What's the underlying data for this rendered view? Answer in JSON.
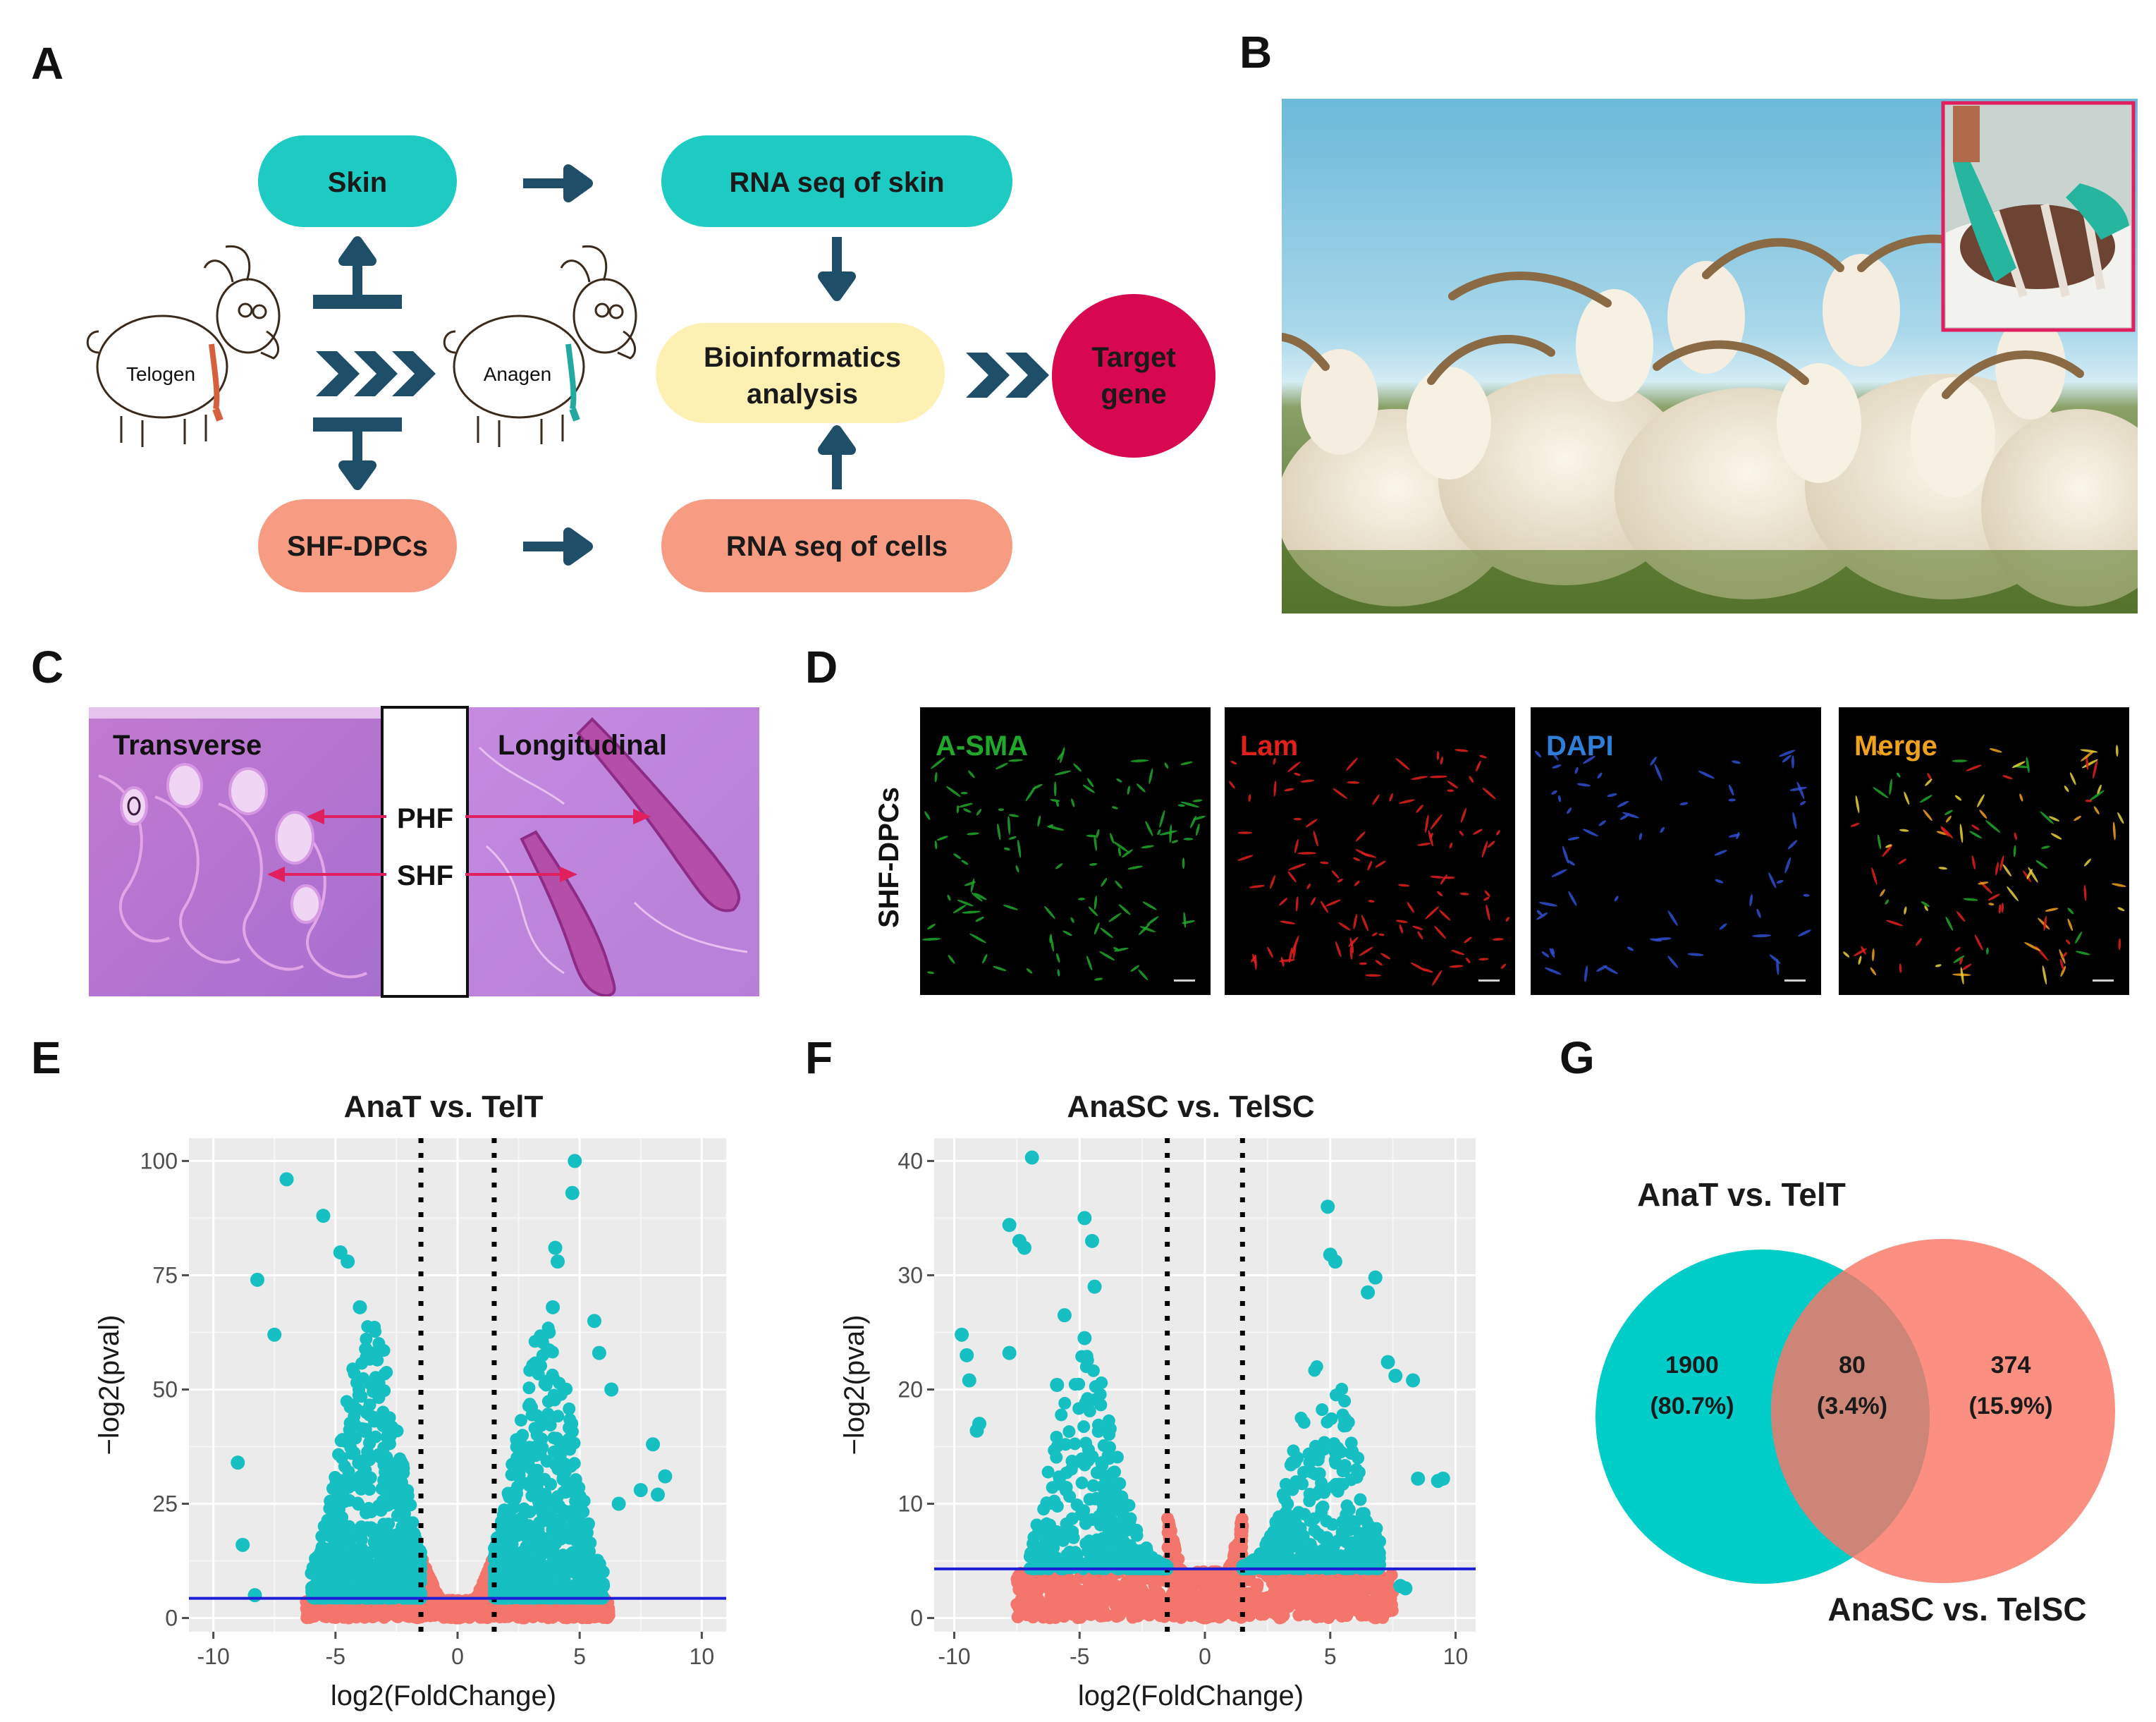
{
  "panel_labels": [
    "A",
    "B",
    "C",
    "D",
    "E",
    "F",
    "G"
  ],
  "panel_a": {
    "skin": "Skin",
    "rna_skin": "RNA seq of skin",
    "shf_dpcs": "SHF-DPCs",
    "rna_cells": "RNA seq of cells",
    "bioinfo_line1": "Bioinformatics",
    "bioinfo_line2": "analysis",
    "target_line1": "Target",
    "target_line2": "gene",
    "telogen": "Telogen",
    "anagen": "Anagen",
    "colors": {
      "teal": "#1ecbc3",
      "salmon": "#f79b83",
      "yellow": "#fdf0b3",
      "crimson": "#d7084f",
      "arrow": "#1f4e68"
    }
  },
  "panel_c": {
    "transverse": "Transverse",
    "longitudinal": "Longitudinal",
    "phf": "PHF",
    "shf": "SHF"
  },
  "panel_d": {
    "row_label": "SHF-DPCs",
    "channels": [
      {
        "name": "A-SMA",
        "color": "#1fa82a"
      },
      {
        "name": "Lam",
        "color": "#e0201b"
      },
      {
        "name": "DAPI",
        "color": "#2f7fd8"
      },
      {
        "name": "Merge",
        "color": "#f1a21c"
      }
    ]
  },
  "chart_data": [
    {
      "type": "scatter",
      "panel": "E",
      "title": "AnaT vs. TelT",
      "xlabel": "log2(FoldChange)",
      "ylabel": "−log2(pval)",
      "xlim": [
        -11,
        11
      ],
      "ylim": [
        -3,
        105
      ],
      "xticks": [
        -10,
        -5,
        0,
        5,
        10
      ],
      "yticks": [
        0,
        25,
        50,
        75,
        100
      ],
      "fc_threshold": [
        -1.5,
        1.5
      ],
      "pval_threshold": 4.3,
      "colors": {
        "significant": "#16bfc2",
        "nonsignificant": "#f4756c",
        "hline": "#1d1dd8"
      },
      "highlight_points": [
        [
          -7,
          96
        ],
        [
          -5.5,
          88
        ],
        [
          -4.8,
          80
        ],
        [
          -8.2,
          74
        ],
        [
          -4.5,
          78
        ],
        [
          -7.5,
          62
        ],
        [
          -9,
          34
        ],
        [
          -8.8,
          16
        ],
        [
          -8.3,
          5
        ],
        [
          -4,
          68
        ],
        [
          4.8,
          100
        ],
        [
          4.7,
          93
        ],
        [
          4,
          81
        ],
        [
          4.1,
          78
        ],
        [
          3.9,
          68
        ],
        [
          5.6,
          65
        ],
        [
          5.8,
          58
        ],
        [
          6.3,
          50
        ],
        [
          8,
          38
        ],
        [
          8.5,
          31
        ],
        [
          8.2,
          27
        ],
        [
          6.6,
          25
        ],
        [
          7.5,
          28
        ]
      ]
    },
    {
      "type": "scatter",
      "panel": "F",
      "title": "AnaSC vs. TelSC",
      "xlabel": "log2(FoldChange)",
      "ylabel": "−log2(pval)",
      "xlim": [
        -10.8,
        10.8
      ],
      "ylim": [
        -1.2,
        42
      ],
      "xticks": [
        -10,
        -5,
        0,
        5,
        10
      ],
      "yticks": [
        0,
        10,
        20,
        30,
        40
      ],
      "fc_threshold": [
        -1.5,
        1.5
      ],
      "pval_threshold": 4.3,
      "colors": {
        "significant": "#16bfc2",
        "nonsignificant": "#f4756c",
        "hline": "#1d1dd8"
      },
      "highlight_points": [
        [
          -6.9,
          40.3
        ],
        [
          -7.8,
          34.4
        ],
        [
          -7.4,
          33
        ],
        [
          -7.2,
          32.4
        ],
        [
          -4.8,
          35
        ],
        [
          -4.5,
          33
        ],
        [
          -4.4,
          29
        ],
        [
          -5.6,
          26.5
        ],
        [
          -4.8,
          24.5
        ],
        [
          -9.7,
          24.8
        ],
        [
          -9.5,
          23
        ],
        [
          -7.8,
          23.2
        ],
        [
          -9.4,
          20.8
        ],
        [
          -5.9,
          20.4
        ],
        [
          -9,
          17
        ],
        [
          -9.1,
          16.4
        ],
        [
          4.9,
          36
        ],
        [
          5,
          31.8
        ],
        [
          5.2,
          31.2
        ],
        [
          6.5,
          28.5
        ],
        [
          6.8,
          29.8
        ],
        [
          7.3,
          22.4
        ],
        [
          7.6,
          21.2
        ],
        [
          8.3,
          20.8
        ],
        [
          8.5,
          12.2
        ],
        [
          9.3,
          12
        ],
        [
          9.5,
          12.2
        ],
        [
          7.8,
          2.8
        ],
        [
          8,
          2.6
        ]
      ]
    }
  ],
  "panel_g": {
    "left_label": "AnaT vs. TelT",
    "right_label": "AnaSC vs. TelSC",
    "left_count": "1900",
    "left_pct": "(80.7%)",
    "overlap_count": "80",
    "overlap_pct": "(3.4%)",
    "right_count": "374",
    "right_pct": "(15.9%)",
    "colors": {
      "left": "#00cdc8",
      "right": "#fa8f82",
      "overlap": "#cc8576"
    }
  }
}
